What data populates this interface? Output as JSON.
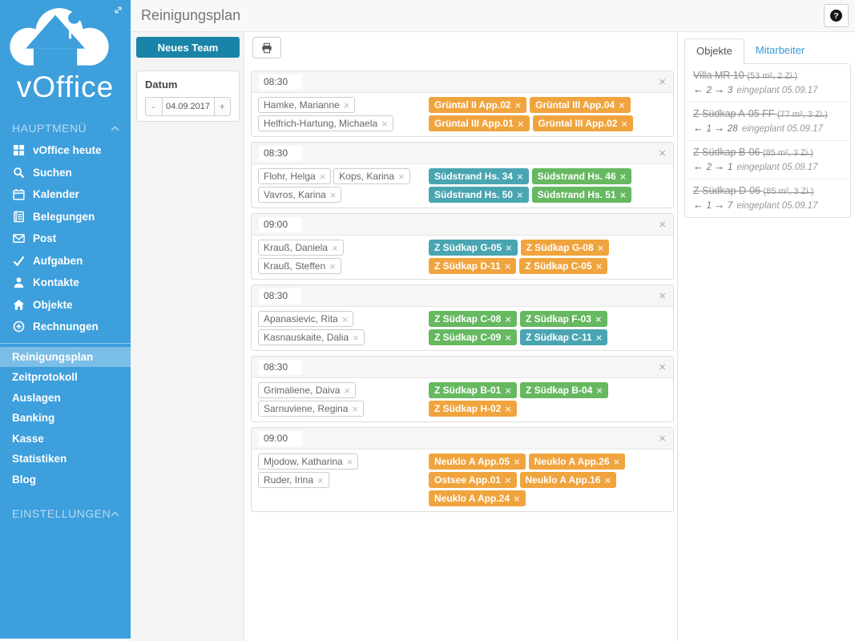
{
  "header": {
    "title": "Reinigungsplan",
    "help_label": "?"
  },
  "sidebar": {
    "brand": "vOffice",
    "main_section_label": "HAUPTMENÜ",
    "settings_section_label": "EINSTELLUNGEN",
    "main_items": [
      {
        "icon": "grid-icon",
        "label": "vOffice heute"
      },
      {
        "icon": "search-icon",
        "label": "Suchen"
      },
      {
        "icon": "calendar-icon",
        "label": "Kalender"
      },
      {
        "icon": "doc-icon",
        "label": "Belegungen"
      },
      {
        "icon": "mail-icon",
        "label": "Post"
      },
      {
        "icon": "check-icon",
        "label": "Aufgaben"
      },
      {
        "icon": "person-icon",
        "label": "Kontakte"
      },
      {
        "icon": "home-icon",
        "label": "Objekte"
      },
      {
        "icon": "plus-circle-icon",
        "label": "Rechnungen"
      }
    ],
    "sub_items": [
      {
        "label": "Reinigungsplan",
        "active": true
      },
      {
        "label": "Zeitprotokoll",
        "active": false
      },
      {
        "label": "Auslagen",
        "active": false
      },
      {
        "label": "Banking",
        "active": false
      },
      {
        "label": "Kasse",
        "active": false
      },
      {
        "label": "Statistiken",
        "active": false
      },
      {
        "label": "Blog",
        "active": false
      }
    ]
  },
  "toolbar": {
    "new_team_label": "Neues Team",
    "print_icon": "printer-icon"
  },
  "date_panel": {
    "label": "Datum",
    "minus_label": "-",
    "value": "04.09.2017",
    "plus_label": "+"
  },
  "teams": [
    {
      "time": "08:30",
      "members": [
        "Hamke, Marianne",
        "Helfrich-Hartung, Michaela"
      ],
      "objects": [
        {
          "label": "Grüntal II App.02",
          "color": "orange"
        },
        {
          "label": "Grüntal III App.04",
          "color": "orange"
        },
        {
          "label": "Grüntal III App.01",
          "color": "orange"
        },
        {
          "label": "Grüntal III App.02",
          "color": "orange"
        }
      ]
    },
    {
      "time": "08:30",
      "members": [
        "Flohr, Helga",
        "Kops, Karina",
        "Vavros, Karina"
      ],
      "objects": [
        {
          "label": "Südstrand Hs. 34",
          "color": "teal"
        },
        {
          "label": "Südstrand Hs. 46",
          "color": "green"
        },
        {
          "label": "Südstrand Hs. 50",
          "color": "teal"
        },
        {
          "label": "Südstrand Hs. 51",
          "color": "green"
        }
      ]
    },
    {
      "time": "09:00",
      "members": [
        "Krauß, Daniela",
        "Krauß, Steffen"
      ],
      "objects": [
        {
          "label": "Z Südkap G-05",
          "color": "teal"
        },
        {
          "label": "Z Südkap G-08",
          "color": "orange"
        },
        {
          "label": "Z Südkap D-11",
          "color": "orange"
        },
        {
          "label": "Z Südkap C-05",
          "color": "orange"
        }
      ]
    },
    {
      "time": "08:30",
      "members": [
        "Apanasievic, Rita",
        "Kasnauskaite, Dalia"
      ],
      "objects": [
        {
          "label": "Z Südkap C-08",
          "color": "green"
        },
        {
          "label": "Z Südkap F-03",
          "color": "green"
        },
        {
          "label": "Z Südkap C-09",
          "color": "green"
        },
        {
          "label": "Z Südkap C-11",
          "color": "teal"
        }
      ]
    },
    {
      "time": "08:30",
      "members": [
        "Grimaliene, Daiva",
        "Sarnuviene, Regina"
      ],
      "objects": [
        {
          "label": "Z Südkap B-01",
          "color": "green"
        },
        {
          "label": "Z Südkap B-04",
          "color": "green"
        },
        {
          "label": "Z Südkap H-02",
          "color": "orange"
        }
      ]
    },
    {
      "time": "09:00",
      "members": [
        "Mjodow, Katharina",
        "Ruder, Irina"
      ],
      "objects": [
        {
          "label": "Neuklo A App.05",
          "color": "orange"
        },
        {
          "label": "Neuklo A App.26",
          "color": "orange"
        },
        {
          "label": "Ostsee App.01",
          "color": "orange"
        },
        {
          "label": "Neuklo A App.16",
          "color": "orange"
        },
        {
          "label": "Neuklo A App.24",
          "color": "orange"
        }
      ]
    }
  ],
  "right_panel": {
    "tabs": [
      {
        "label": "Objekte",
        "active": true
      },
      {
        "label": "Mitarbeiter",
        "active": false
      }
    ],
    "objects": [
      {
        "name": "Villa MR 10",
        "details": "(53 m², 2 Zi.)",
        "out": "2",
        "in": "3",
        "note": "eingeplant 05.09.17"
      },
      {
        "name": "Z Südkap A-05 FF",
        "details": "(77 m², 3 Zi.)",
        "out": "1",
        "in": "28",
        "note": "eingeplant 05.09.17"
      },
      {
        "name": "Z Südkap B-06",
        "details": "(85 m², 3 Zi.)",
        "out": "2",
        "in": "1",
        "note": "eingeplant 05.09.17"
      },
      {
        "name": "Z Südkap D-06",
        "details": "(85 m², 3 Zi.)",
        "out": "1",
        "in": "7",
        "note": "eingeplant 05.09.17"
      }
    ]
  },
  "colors": {
    "sidebar_blue": "#3d9fdc",
    "accent_button": "#1a84a8",
    "tag_orange": "#f0a43e",
    "tag_green": "#66b861",
    "tag_teal": "#49a5b1",
    "link_blue": "#3a99d8"
  }
}
